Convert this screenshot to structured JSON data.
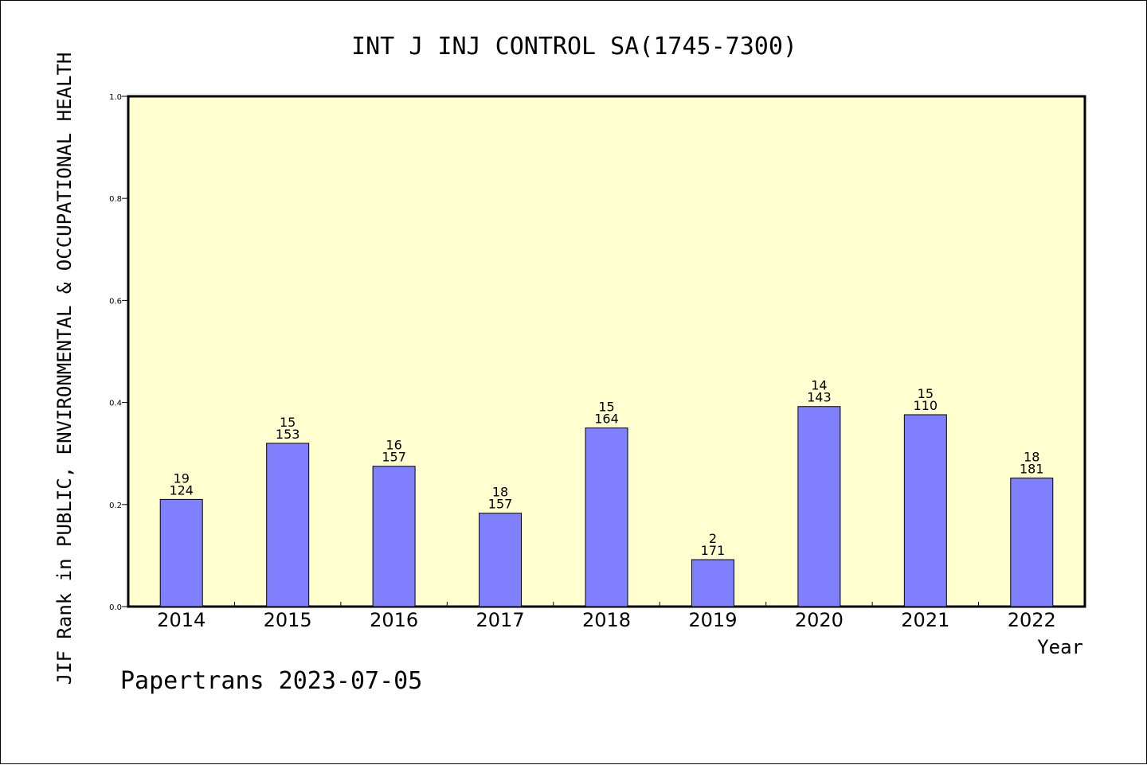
{
  "chart_data": {
    "type": "bar",
    "title": "INT J INJ CONTROL SA(1745-7300)",
    "xlabel": "Year",
    "ylabel": "JIF Rank in PUBLIC, ENVIRONMENTAL & OCCUPATIONAL HEALTH",
    "ylim": [
      0,
      1.0
    ],
    "yticks": [
      "0.0",
      "0.2",
      "0.4",
      "0.6",
      "0.8",
      "1.0"
    ],
    "categories": [
      "2014",
      "2015",
      "2016",
      "2017",
      "2018",
      "2019",
      "2020",
      "2021",
      "2022"
    ],
    "values": [
      0.21,
      0.32,
      0.275,
      0.183,
      0.35,
      0.092,
      0.392,
      0.376,
      0.252
    ],
    "rank": [
      "19",
      "15",
      "16",
      "18",
      "15",
      "2",
      "14",
      "15",
      "18"
    ],
    "total": [
      "124",
      "153",
      "157",
      "157",
      "164",
      "171",
      "143",
      "110",
      "181"
    ],
    "grid": false,
    "colors": {
      "bar": "#8080ff",
      "plot_background": "#ffffd0"
    }
  },
  "footer": "Papertrans 2023-07-05"
}
